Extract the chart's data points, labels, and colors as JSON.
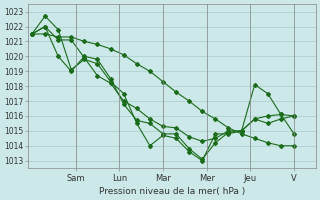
{
  "title": "",
  "xlabel": "Pression niveau de la mer( hPa )",
  "ylabel": "",
  "ylim": [
    1012.5,
    1023.5
  ],
  "yticks": [
    1013,
    1014,
    1015,
    1016,
    1017,
    1018,
    1019,
    1020,
    1021,
    1022,
    1023
  ],
  "bg_color": "#cce8e8",
  "grid_color": "#aacccc",
  "line_color": "#1a6b1a",
  "day_labels": [
    "Sam",
    "Lun",
    "Mar",
    "Mer",
    "Jeu",
    "V"
  ],
  "day_positions": [
    2,
    4,
    6,
    8,
    10,
    12
  ],
  "series": [
    [
      1021.5,
      1022.7,
      1021.8,
      1019.1,
      1019.8,
      1019.5,
      1018.3,
      1017.5,
      1015.5,
      1014.0,
      1014.7,
      1014.5,
      1013.6,
      1013.0,
      1014.8,
      1014.8,
      1015.0,
      1018.1,
      1017.5,
      1016.1,
      1014.8
    ],
    [
      1021.5,
      1022.0,
      1021.1,
      1021.1,
      1019.9,
      1018.7,
      1018.2,
      1017.0,
      1016.5,
      1015.8,
      1015.3,
      1015.2,
      1014.6,
      1014.3,
      1014.5,
      1015.0,
      1015.0,
      1015.8,
      1016.0,
      1016.1,
      1016.0
    ],
    [
      1021.5,
      1022.0,
      1020.0,
      1019.0,
      1020.0,
      1019.8,
      1018.5,
      1016.8,
      1015.7,
      1015.5,
      1014.8,
      1014.8,
      1013.8,
      1013.1,
      1014.2,
      1014.9,
      1015.0,
      1015.8,
      1015.5,
      1015.8,
      1016.0
    ],
    [
      1021.5,
      1021.5,
      1021.3,
      1021.3,
      1021.0,
      1020.8,
      1020.5,
      1020.1,
      1019.5,
      1019.0,
      1018.3,
      1017.6,
      1017.0,
      1016.3,
      1015.8,
      1015.2,
      1014.8,
      1014.5,
      1014.2,
      1014.0,
      1014.0
    ]
  ]
}
